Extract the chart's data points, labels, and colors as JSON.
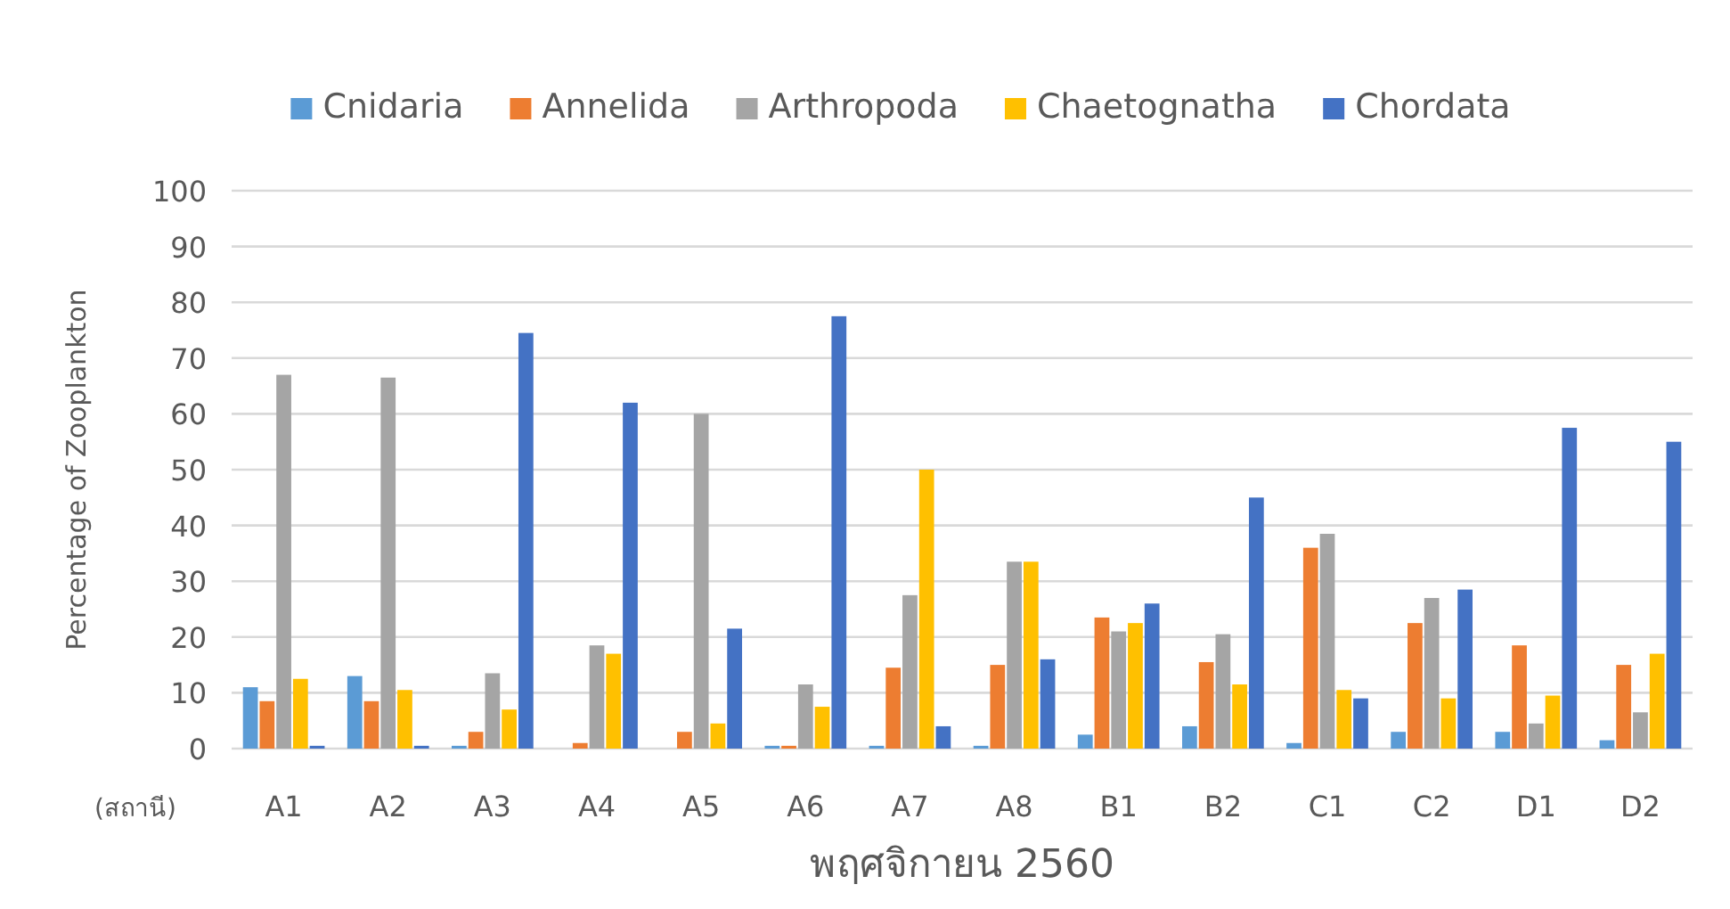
{
  "chart_data": {
    "type": "bar",
    "xlabel": "พฤศจิกายน 2560",
    "ylabel": "Percentage of Zooplankton",
    "annotations": [
      "(สถานี)"
    ],
    "categories": [
      "A1",
      "A2",
      "A3",
      "A4",
      "A5",
      "A6",
      "A7",
      "A8",
      "B1",
      "B2",
      "C1",
      "C2",
      "D1",
      "D2"
    ],
    "series": [
      {
        "name": "Cnidaria",
        "color": "#5b9bd5",
        "values": [
          11,
          13,
          0.5,
          0,
          0,
          0.5,
          0.5,
          0.5,
          2.5,
          4,
          1,
          3,
          3,
          1.5
        ]
      },
      {
        "name": "Annelida",
        "color": "#ed7d31",
        "values": [
          8.5,
          8.5,
          3,
          1,
          3,
          0.5,
          14.5,
          15,
          23.5,
          15.5,
          36,
          22.5,
          18.5,
          15
        ]
      },
      {
        "name": "Arthropoda",
        "color": "#a5a5a5",
        "values": [
          67,
          66.5,
          13.5,
          18.5,
          60,
          11.5,
          27.5,
          33.5,
          21,
          20.5,
          38.5,
          27,
          4.5,
          6.5
        ]
      },
      {
        "name": "Chaetognatha",
        "color": "#ffc000",
        "values": [
          12.5,
          10.5,
          7,
          17,
          4.5,
          7.5,
          50,
          33.5,
          22.5,
          11.5,
          10.5,
          9,
          9.5,
          17
        ]
      },
      {
        "name": "Chordata",
        "color": "#4472c4",
        "values": [
          0.5,
          0.5,
          74.5,
          62,
          21.5,
          77.5,
          4,
          16,
          26,
          45,
          9,
          28.5,
          57.5,
          55
        ]
      }
    ],
    "ylim": [
      0,
      100
    ],
    "yticks": [
      0,
      10,
      20,
      30,
      40,
      50,
      60,
      70,
      80,
      90,
      100
    ],
    "grid": "y",
    "legend": "top"
  }
}
